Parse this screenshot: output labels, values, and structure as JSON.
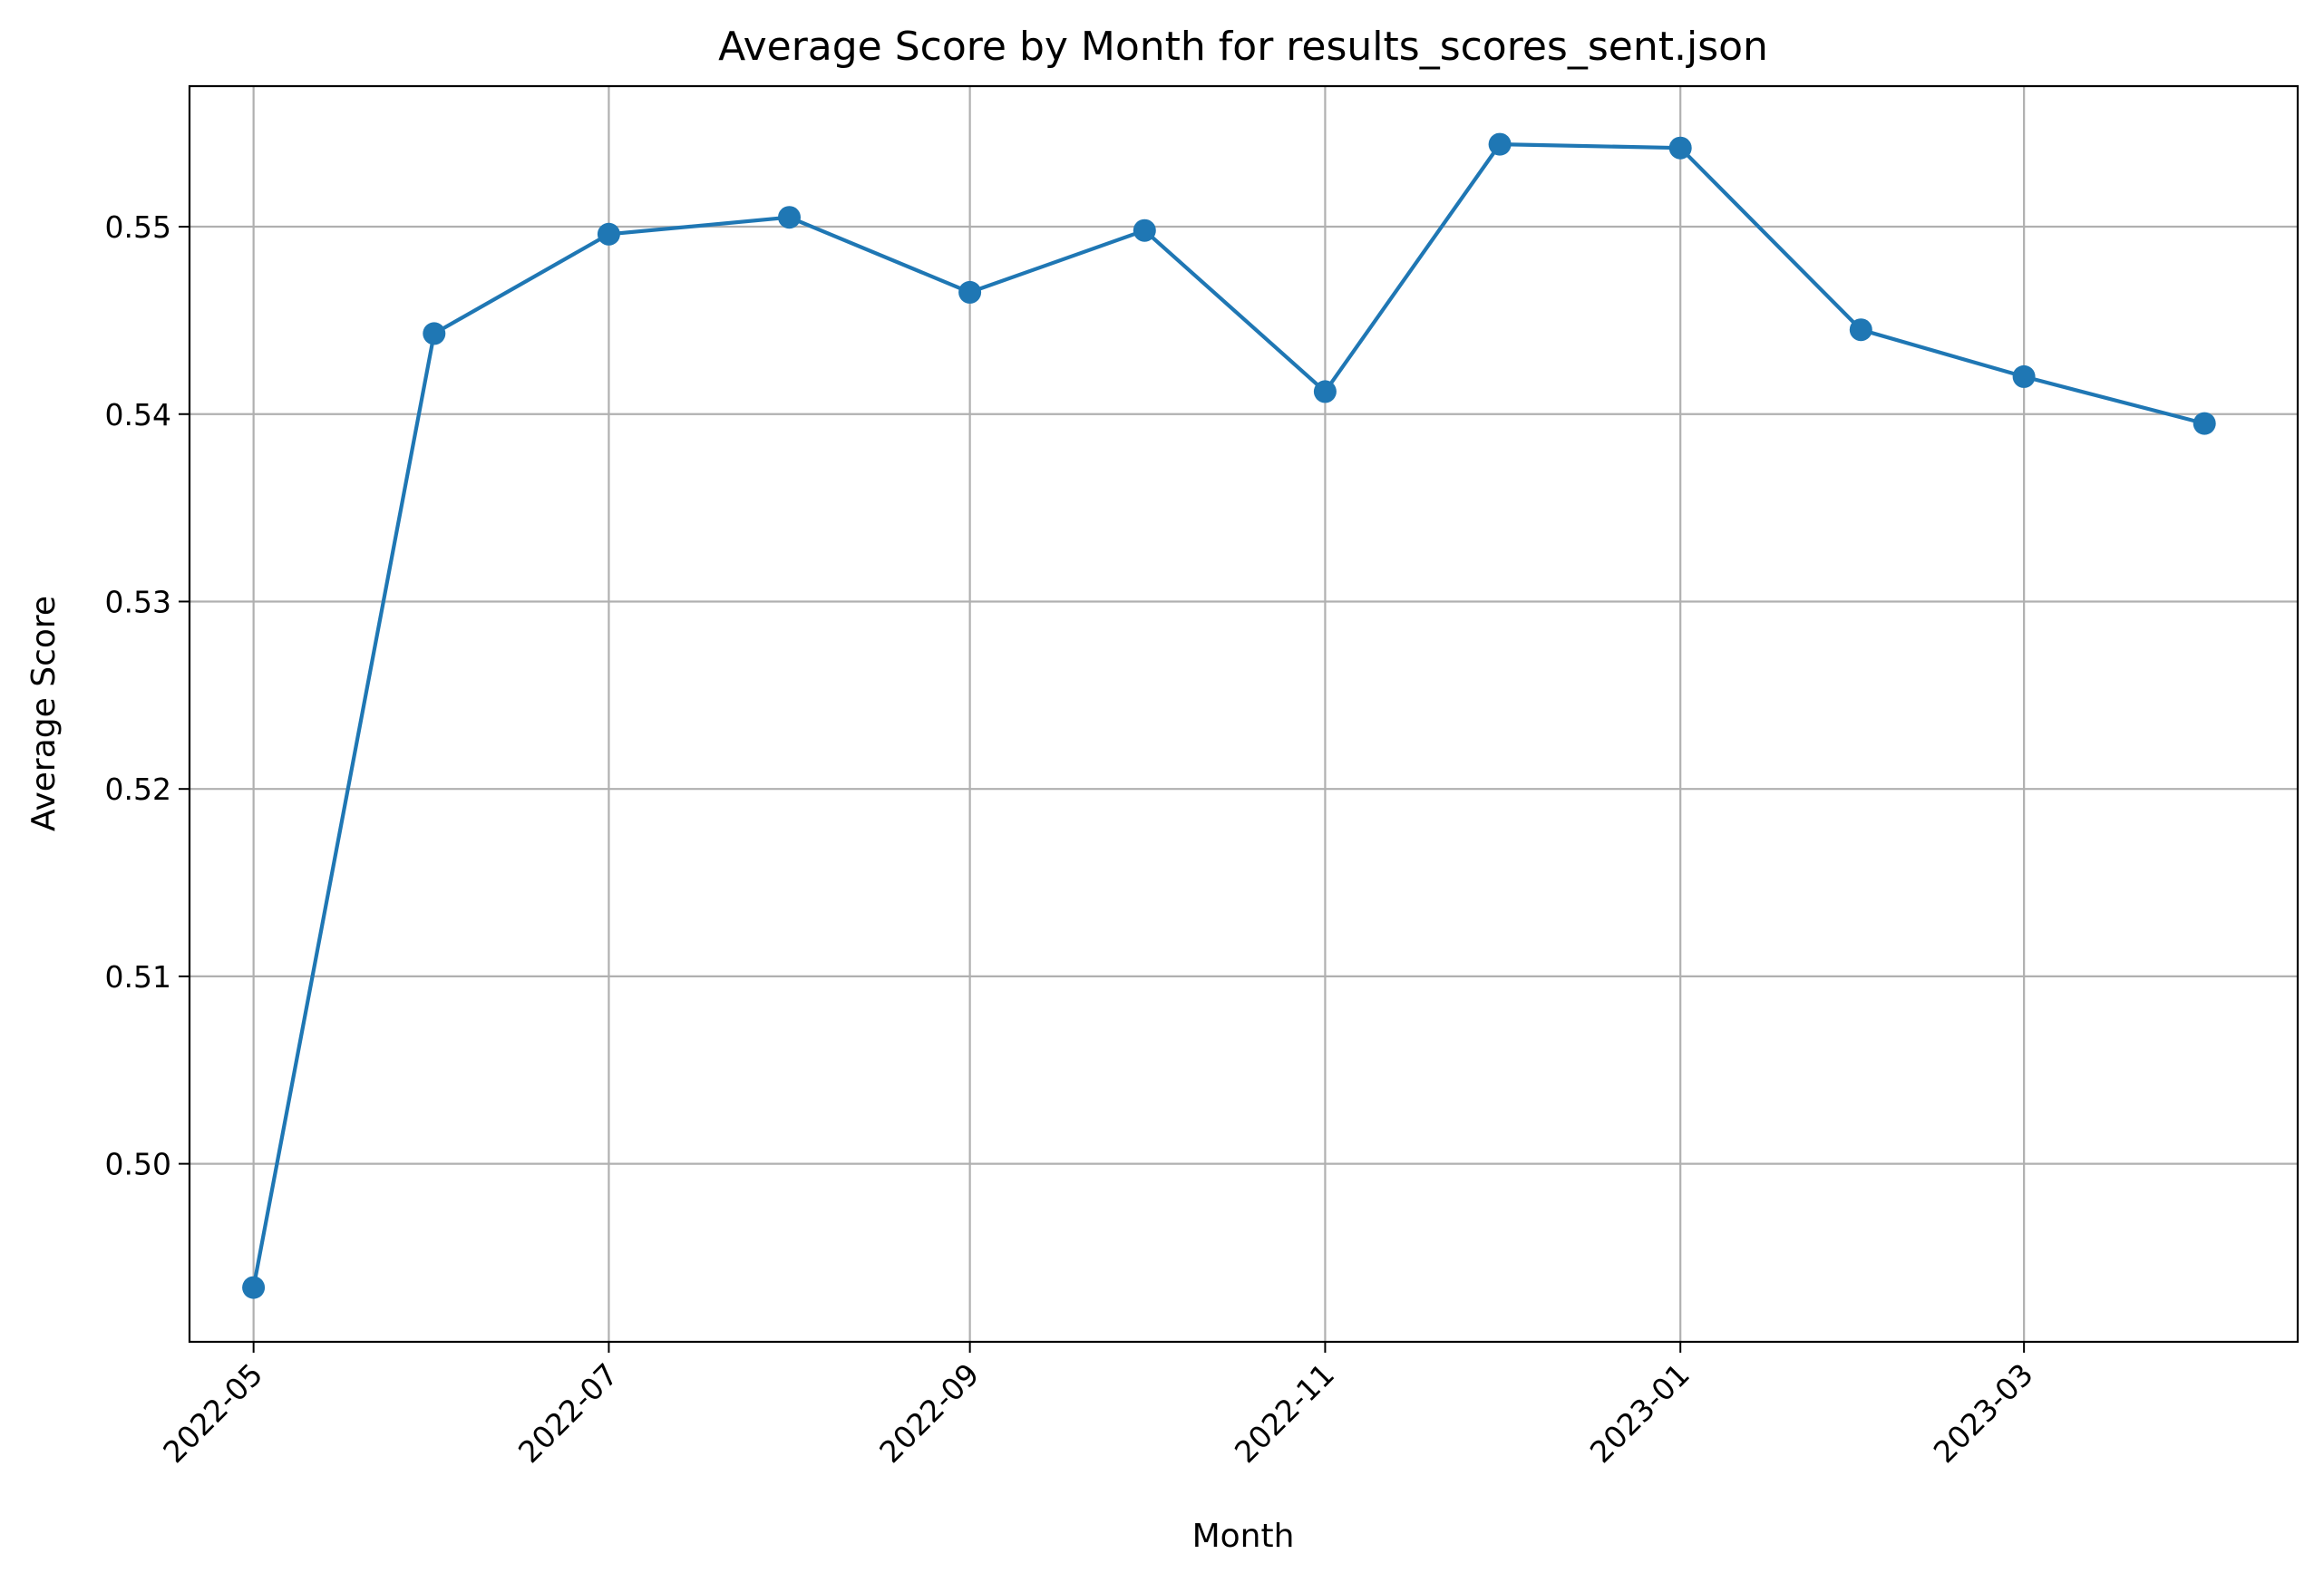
{
  "chart_data": {
    "type": "line",
    "title": "Average Score by Month for results_scores_sent.json",
    "xlabel": "Month",
    "ylabel": "Average Score",
    "grid": true,
    "xlim": [
      "2022-04-20",
      "2023-04-17"
    ],
    "ylim": [
      0.4905,
      0.5575
    ],
    "x_ticks": [
      "2022-05",
      "2022-07",
      "2022-09",
      "2022-11",
      "2023-01",
      "2023-03"
    ],
    "y_ticks": [
      "0.50",
      "0.51",
      "0.52",
      "0.53",
      "0.54",
      "0.55"
    ],
    "series": [
      {
        "color": "#1f77b4",
        "marker": "circle",
        "x": [
          "2022-05-01",
          "2022-06-01",
          "2022-07-01",
          "2022-08-01",
          "2022-09-01",
          "2022-10-01",
          "2022-11-01",
          "2022-12-01",
          "2023-01-01",
          "2023-02-01",
          "2023-03-01",
          "2023-04-01"
        ],
        "y": [
          0.4934,
          0.5443,
          0.5496,
          0.5505,
          0.5465,
          0.5498,
          0.5412,
          0.5544,
          0.5542,
          0.5445,
          0.542,
          0.5395
        ]
      }
    ]
  }
}
